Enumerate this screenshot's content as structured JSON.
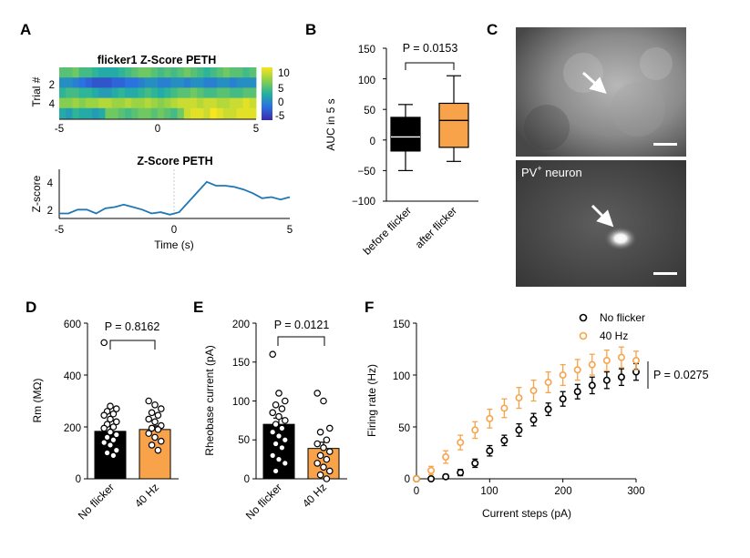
{
  "panels": {
    "A": "A",
    "B": "B",
    "C": "C",
    "D": "D",
    "E": "E",
    "F": "F"
  },
  "chart_data": [
    {
      "id": "A-heatmap",
      "type": "heatmap",
      "title": "flicker1  Z-Score PETH",
      "ylabel": "Trial #",
      "xticks": [
        "-5",
        "0",
        "5"
      ],
      "yticks": [
        "2",
        "4"
      ],
      "colorbar_ticks": [
        "10",
        "5",
        "0",
        "-5"
      ],
      "zlim": [
        -7,
        12
      ],
      "colors": {
        "low": "#3b2ba8",
        "mid": "#23b1a0",
        "high": "#f8e51e"
      },
      "rows": [
        [
          5,
          5,
          6,
          4,
          4,
          3,
          2,
          2,
          2,
          3,
          4,
          5,
          6,
          6,
          5,
          4,
          5,
          4,
          5,
          6,
          5,
          4,
          3,
          4,
          5,
          6,
          5,
          5,
          4,
          5
        ],
        [
          0,
          0,
          -1,
          -2,
          -3,
          -4,
          -4,
          -4,
          -3,
          -3,
          -2,
          -2,
          -1,
          0,
          0,
          -1,
          -1,
          0,
          0,
          -1,
          0,
          0,
          -1,
          -1,
          0,
          0,
          -1,
          0,
          0,
          0
        ],
        [
          3,
          4,
          4,
          3,
          3,
          2,
          1,
          1,
          2,
          3,
          2,
          2,
          3,
          4,
          3,
          2,
          3,
          4,
          5,
          5,
          6,
          5,
          4,
          4,
          5,
          5,
          4,
          4,
          5,
          5
        ],
        [
          7,
          7,
          8,
          7,
          8,
          8,
          9,
          9,
          8,
          8,
          9,
          8,
          8,
          9,
          8,
          7,
          8,
          9,
          10,
          10,
          10,
          9,
          10,
          10,
          9,
          9,
          10,
          10,
          11,
          10
        ],
        [
          2,
          1,
          3,
          2,
          2,
          1,
          2,
          6,
          6,
          5,
          4,
          5,
          6,
          6,
          5,
          6,
          5,
          4,
          6,
          10,
          11,
          11,
          10,
          12,
          11,
          10,
          10,
          11,
          11,
          11
        ]
      ]
    },
    {
      "id": "A-line",
      "type": "line",
      "title": "Z-Score PETH",
      "xlabel": "Time (s)",
      "ylabel": "Z-score",
      "xlim": [
        -5,
        5
      ],
      "ylim": [
        1.3,
        5.2
      ],
      "xticks": [
        "-5",
        "0",
        "5"
      ],
      "yticks": [
        "2",
        "4"
      ],
      "color": "#1f77b4",
      "x": [
        -5,
        -4.6,
        -4.2,
        -3.8,
        -3.4,
        -3,
        -2.6,
        -2.2,
        -1.8,
        -1.4,
        -1,
        -0.6,
        -0.2,
        0.2,
        0.6,
        1,
        1.4,
        1.8,
        2.2,
        2.6,
        3,
        3.4,
        3.8,
        4.2,
        4.6,
        5
      ],
      "y": [
        1.7,
        1.7,
        2.0,
        2.0,
        1.7,
        2.1,
        2.2,
        2.4,
        2.2,
        2.0,
        1.7,
        1.8,
        1.6,
        1.8,
        2.6,
        3.4,
        4.2,
        3.9,
        3.9,
        3.8,
        3.6,
        3.3,
        2.9,
        3.0,
        2.8,
        3.0
      ]
    },
    {
      "id": "B",
      "type": "box",
      "ylabel": "AUC in 5 s",
      "categories": [
        "before flicker",
        "after flicker"
      ],
      "colors": [
        "#000000",
        "#f8a34a"
      ],
      "yticks": [
        "150",
        "100",
        "50",
        "0",
        "−50",
        "−100"
      ],
      "ylim": [
        -100,
        150
      ],
      "boxes": [
        {
          "min": -50,
          "q1": -18,
          "median": 5,
          "q3": 37,
          "max": 58
        },
        {
          "min": -35,
          "q1": -12,
          "median": 32,
          "q3": 60,
          "max": 105
        }
      ],
      "p_label": "P = 0.0153"
    },
    {
      "id": "D",
      "type": "bar",
      "ylabel": "Rm (MΩ)",
      "categories": [
        "No flicker",
        "40 Hz"
      ],
      "colors": [
        "#000000",
        "#f8a34a"
      ],
      "ylim": [
        0,
        600
      ],
      "yticks": [
        "600",
        "400",
        "200",
        "0"
      ],
      "values": [
        183,
        190
      ],
      "sem": [
        22,
        14
      ],
      "points": [
        [
          525,
          280,
          270,
          260,
          250,
          245,
          230,
          220,
          210,
          200,
          195,
          180,
          170,
          160,
          150,
          140,
          130,
          110,
          100,
          90
        ],
        [
          300,
          285,
          270,
          255,
          245,
          230,
          220,
          205,
          195,
          190,
          175,
          160,
          145,
          130,
          110
        ]
      ],
      "p_label": "P = 0.8162"
    },
    {
      "id": "E",
      "type": "bar",
      "ylabel": "Rheobase current (pA)",
      "categories": [
        "No flicker",
        "40 Hz"
      ],
      "colors": [
        "#000000",
        "#f8a34a"
      ],
      "ylim": [
        0,
        200
      ],
      "yticks": [
        "200",
        "150",
        "100",
        "50",
        "0"
      ],
      "values": [
        70,
        39
      ],
      "sem": [
        8,
        8
      ],
      "points": [
        [
          160,
          110,
          100,
          95,
          90,
          85,
          80,
          75,
          70,
          65,
          60,
          55,
          50,
          45,
          40,
          30,
          25,
          20,
          10
        ],
        [
          110,
          100,
          65,
          60,
          50,
          45,
          40,
          35,
          30,
          25,
          20,
          15,
          10,
          5,
          0
        ]
      ],
      "p_label": "P = 0.0121"
    },
    {
      "id": "F",
      "type": "scatter",
      "xlabel": "Current steps (pA)",
      "ylabel": "Firing rate (Hz)",
      "xlim": [
        0,
        300
      ],
      "ylim": [
        0,
        150
      ],
      "xticks": [
        "0",
        "100",
        "200",
        "300"
      ],
      "yticks": [
        "150",
        "100",
        "50",
        "0"
      ],
      "x": [
        0,
        20,
        40,
        60,
        80,
        100,
        120,
        140,
        160,
        180,
        200,
        220,
        240,
        260,
        280,
        300
      ],
      "series": [
        {
          "name": "No flicker",
          "color": "#000000",
          "values": [
            0,
            0,
            2,
            6,
            15,
            27,
            37,
            47,
            57,
            67,
            77,
            84,
            90,
            95,
            98,
            103
          ],
          "err": [
            1,
            1,
            2,
            3,
            4,
            5,
            5,
            6,
            6,
            6,
            7,
            7,
            8,
            8,
            8,
            8
          ]
        },
        {
          "name": "40 Hz",
          "color": "#f8a34a",
          "values": [
            0,
            8,
            21,
            35,
            47,
            58,
            68,
            78,
            85,
            93,
            100,
            105,
            110,
            114,
            117,
            114
          ],
          "err": [
            1,
            4,
            6,
            7,
            8,
            9,
            9,
            10,
            10,
            10,
            10,
            10,
            10,
            10,
            10,
            9
          ]
        }
      ],
      "p_label": "P = 0.0275"
    }
  ],
  "images": {
    "top_scale": "scale bar",
    "bottom_label": "PV",
    "bottom_label_sup": "+",
    "bottom_label_rest": " neuron"
  }
}
